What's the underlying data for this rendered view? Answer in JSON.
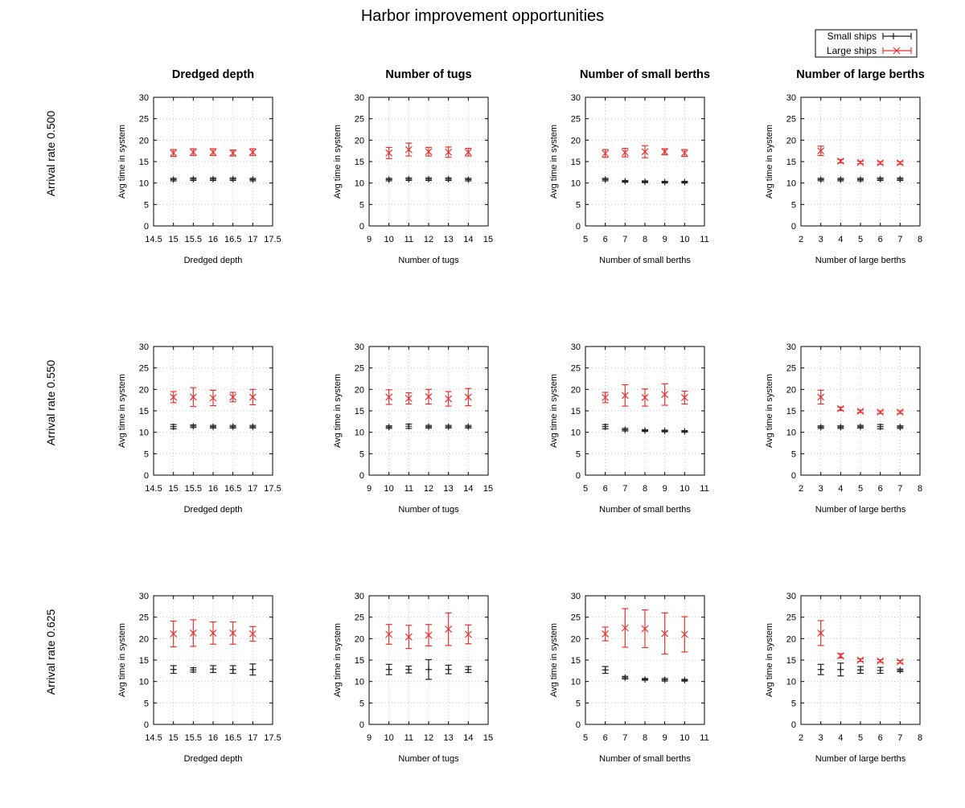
{
  "title": "Harbor improvement opportunities",
  "legend": {
    "placement": "top-right",
    "items": [
      {
        "label": "Small ships",
        "color": "#222222",
        "marker": "plus"
      },
      {
        "label": "Large ships",
        "color": "#e8312f",
        "marker": "cross"
      }
    ]
  },
  "column_titles": [
    "Dredged depth",
    "Number of tugs",
    "Number of small berths",
    "Number of large berths"
  ],
  "row_labels": [
    "Arrival rate 0.500",
    "Arrival rate 0.550",
    "Arrival rate 0.625"
  ],
  "colors": {
    "small": "#222222",
    "large": "#e8312f",
    "grid": "#bbbbbb",
    "axis": "#000000"
  },
  "chart_data": [
    {
      "type": "scatter",
      "row": 0,
      "col": 0,
      "xlabel": "Dredged depth",
      "ylabel": "Avg time in system",
      "xlim": [
        14.5,
        17.5
      ],
      "ylim": [
        0,
        30
      ],
      "grid": true,
      "x": [
        15,
        15.5,
        16,
        16.5,
        17
      ],
      "series": [
        {
          "name": "Small ships",
          "values": [
            10.8,
            10.9,
            10.9,
            10.9,
            10.8
          ],
          "err": [
            0.3,
            0.3,
            0.3,
            0.3,
            0.3
          ]
        },
        {
          "name": "Large ships",
          "values": [
            17.0,
            17.2,
            17.2,
            17.0,
            17.2
          ],
          "err": [
            0.8,
            0.8,
            0.8,
            0.7,
            0.8
          ]
        }
      ]
    },
    {
      "type": "scatter",
      "row": 0,
      "col": 1,
      "xlabel": "Number of tugs",
      "ylabel": "Avg time in system",
      "xlim": [
        9,
        15
      ],
      "ylim": [
        0,
        30
      ],
      "grid": true,
      "x": [
        10,
        11,
        12,
        13,
        14
      ],
      "series": [
        {
          "name": "Small ships",
          "values": [
            10.8,
            10.9,
            10.9,
            10.9,
            10.8
          ],
          "err": [
            0.3,
            0.3,
            0.3,
            0.3,
            0.3
          ]
        },
        {
          "name": "Large ships",
          "values": [
            17.0,
            17.8,
            17.3,
            17.2,
            17.2
          ],
          "err": [
            1.3,
            1.5,
            1.0,
            1.2,
            0.9
          ]
        }
      ]
    },
    {
      "type": "scatter",
      "row": 0,
      "col": 2,
      "xlabel": "Number of small berths",
      "ylabel": "Avg time in system",
      "xlim": [
        5,
        11
      ],
      "ylim": [
        0,
        30
      ],
      "grid": true,
      "x": [
        6,
        7,
        8,
        9,
        10
      ],
      "series": [
        {
          "name": "Small ships",
          "values": [
            10.8,
            10.4,
            10.3,
            10.2,
            10.2
          ],
          "err": [
            0.3,
            0.2,
            0.2,
            0.2,
            0.2
          ]
        },
        {
          "name": "Large ships",
          "values": [
            16.9,
            17.1,
            17.3,
            17.3,
            17.0
          ],
          "err": [
            0.9,
            1.0,
            1.4,
            0.7,
            0.8
          ]
        }
      ]
    },
    {
      "type": "scatter",
      "row": 0,
      "col": 3,
      "xlabel": "Number of large berths",
      "ylabel": "Avg time in system",
      "xlim": [
        2,
        8
      ],
      "ylim": [
        0,
        30
      ],
      "grid": true,
      "x": [
        3,
        4,
        5,
        6,
        7
      ],
      "series": [
        {
          "name": "Small ships",
          "values": [
            10.8,
            10.8,
            10.8,
            10.9,
            10.9
          ],
          "err": [
            0.3,
            0.3,
            0.3,
            0.3,
            0.3
          ]
        },
        {
          "name": "Large ships",
          "values": [
            17.5,
            15.1,
            14.8,
            14.7,
            14.7
          ],
          "err": [
            1.1,
            0.4,
            0.3,
            0.3,
            0.3
          ]
        }
      ]
    },
    {
      "type": "scatter",
      "row": 1,
      "col": 0,
      "xlabel": "Dredged depth",
      "ylabel": "Avg time in system",
      "xlim": [
        14.5,
        17.5
      ],
      "ylim": [
        0,
        30
      ],
      "grid": true,
      "x": [
        15,
        15.5,
        16,
        16.5,
        17
      ],
      "series": [
        {
          "name": "Small ships",
          "values": [
            11.3,
            11.4,
            11.3,
            11.3,
            11.3
          ],
          "err": [
            0.5,
            0.3,
            0.3,
            0.3,
            0.3
          ]
        },
        {
          "name": "Large ships",
          "values": [
            18.2,
            18.2,
            18.0,
            18.2,
            18.2
          ],
          "err": [
            1.3,
            2.2,
            1.8,
            1.1,
            1.8
          ]
        }
      ]
    },
    {
      "type": "scatter",
      "row": 1,
      "col": 1,
      "xlabel": "Number of tugs",
      "ylabel": "Avg time in system",
      "xlim": [
        9,
        15
      ],
      "ylim": [
        0,
        30
      ],
      "grid": true,
      "x": [
        10,
        11,
        12,
        13,
        14
      ],
      "series": [
        {
          "name": "Small ships",
          "values": [
            11.2,
            11.4,
            11.3,
            11.3,
            11.3
          ],
          "err": [
            0.3,
            0.5,
            0.3,
            0.3,
            0.3
          ]
        },
        {
          "name": "Large ships",
          "values": [
            18.2,
            17.9,
            18.3,
            17.8,
            18.2
          ],
          "err": [
            1.7,
            1.3,
            1.7,
            1.7,
            2.0
          ]
        }
      ]
    },
    {
      "type": "scatter",
      "row": 1,
      "col": 2,
      "xlabel": "Number of small berths",
      "ylabel": "Avg time in system",
      "xlim": [
        5,
        11
      ],
      "ylim": [
        0,
        30
      ],
      "grid": true,
      "x": [
        6,
        7,
        8,
        9,
        10
      ],
      "series": [
        {
          "name": "Small ships",
          "values": [
            11.3,
            10.6,
            10.4,
            10.3,
            10.2
          ],
          "err": [
            0.5,
            0.3,
            0.2,
            0.2,
            0.2
          ]
        },
        {
          "name": "Large ships",
          "values": [
            18.1,
            18.6,
            18.1,
            18.8,
            18.1
          ],
          "err": [
            1.2,
            2.5,
            2.0,
            2.5,
            1.5
          ]
        }
      ]
    },
    {
      "type": "scatter",
      "row": 1,
      "col": 3,
      "xlabel": "Number of large berths",
      "ylabel": "Avg time in system",
      "xlim": [
        2,
        8
      ],
      "ylim": [
        0,
        30
      ],
      "grid": true,
      "x": [
        3,
        4,
        5,
        6,
        7
      ],
      "series": [
        {
          "name": "Small ships",
          "values": [
            11.2,
            11.2,
            11.3,
            11.3,
            11.2
          ],
          "err": [
            0.3,
            0.3,
            0.3,
            0.5,
            0.3
          ]
        },
        {
          "name": "Large ships",
          "values": [
            18.2,
            15.5,
            14.9,
            14.7,
            14.7
          ],
          "err": [
            1.6,
            0.4,
            0.3,
            0.3,
            0.3
          ]
        }
      ]
    },
    {
      "type": "scatter",
      "row": 2,
      "col": 0,
      "xlabel": "Dredged depth",
      "ylabel": "Avg time in system",
      "xlim": [
        14.5,
        17.5
      ],
      "ylim": [
        0,
        30
      ],
      "grid": true,
      "x": [
        15,
        15.5,
        16,
        16.5,
        17
      ],
      "series": [
        {
          "name": "Small ships",
          "values": [
            12.8,
            12.7,
            12.9,
            12.8,
            12.8
          ],
          "err": [
            0.9,
            0.5,
            0.8,
            0.9,
            1.3
          ]
        },
        {
          "name": "Large ships",
          "values": [
            21.1,
            21.3,
            21.3,
            21.3,
            21.1
          ],
          "err": [
            3.0,
            3.1,
            2.6,
            2.6,
            1.7
          ]
        }
      ]
    },
    {
      "type": "scatter",
      "row": 2,
      "col": 1,
      "xlabel": "Number of tugs",
      "ylabel": "Avg time in system",
      "xlim": [
        9,
        15
      ],
      "ylim": [
        0,
        30
      ],
      "grid": true,
      "x": [
        10,
        11,
        12,
        13,
        14
      ],
      "series": [
        {
          "name": "Small ships",
          "values": [
            12.8,
            12.8,
            12.8,
            12.8,
            12.8
          ],
          "err": [
            1.2,
            0.8,
            2.3,
            1.0,
            0.7
          ]
        },
        {
          "name": "Large ships",
          "values": [
            21.0,
            20.4,
            20.8,
            22.2,
            21.0
          ],
          "err": [
            2.3,
            2.7,
            2.5,
            3.8,
            2.2
          ]
        }
      ]
    },
    {
      "type": "scatter",
      "row": 2,
      "col": 2,
      "xlabel": "Number of small berths",
      "ylabel": "Avg time in system",
      "xlim": [
        5,
        11
      ],
      "ylim": [
        0,
        30
      ],
      "grid": true,
      "x": [
        6,
        7,
        8,
        9,
        10
      ],
      "series": [
        {
          "name": "Small ships",
          "values": [
            12.7,
            10.9,
            10.5,
            10.4,
            10.3
          ],
          "err": [
            0.8,
            0.3,
            0.2,
            0.3,
            0.2
          ]
        },
        {
          "name": "Large ships",
          "values": [
            21.1,
            22.5,
            22.3,
            21.2,
            21.0
          ],
          "err": [
            1.6,
            4.5,
            4.4,
            4.8,
            4.1
          ]
        }
      ]
    },
    {
      "type": "scatter",
      "row": 2,
      "col": 3,
      "xlabel": "Number of large berths",
      "ylabel": "Avg time in system",
      "xlim": [
        2,
        8
      ],
      "ylim": [
        0,
        30
      ],
      "grid": true,
      "x": [
        3,
        4,
        5,
        6,
        7
      ],
      "series": [
        {
          "name": "Small ships",
          "values": [
            12.8,
            12.8,
            12.7,
            12.6,
            12.6
          ],
          "err": [
            1.2,
            1.5,
            0.8,
            0.7,
            0.3
          ]
        },
        {
          "name": "Large ships",
          "values": [
            21.3,
            16.0,
            15.0,
            14.8,
            14.6
          ],
          "err": [
            2.9,
            0.5,
            0.3,
            0.3,
            0.3
          ]
        }
      ]
    }
  ]
}
